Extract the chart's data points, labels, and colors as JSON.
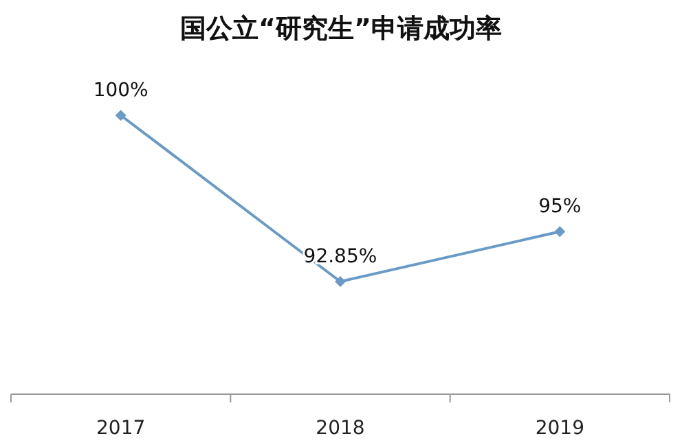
{
  "chart_data": {
    "type": "line",
    "title": "国公立“研究生”申请成功率",
    "categories": [
      "2017",
      "2018",
      "2019"
    ],
    "values": [
      100,
      92.85,
      95
    ],
    "value_labels": [
      "100%",
      "92.85%",
      "95%"
    ],
    "color": "#6a9bc6",
    "marker": "diamond",
    "tick_labels": "x"
  }
}
